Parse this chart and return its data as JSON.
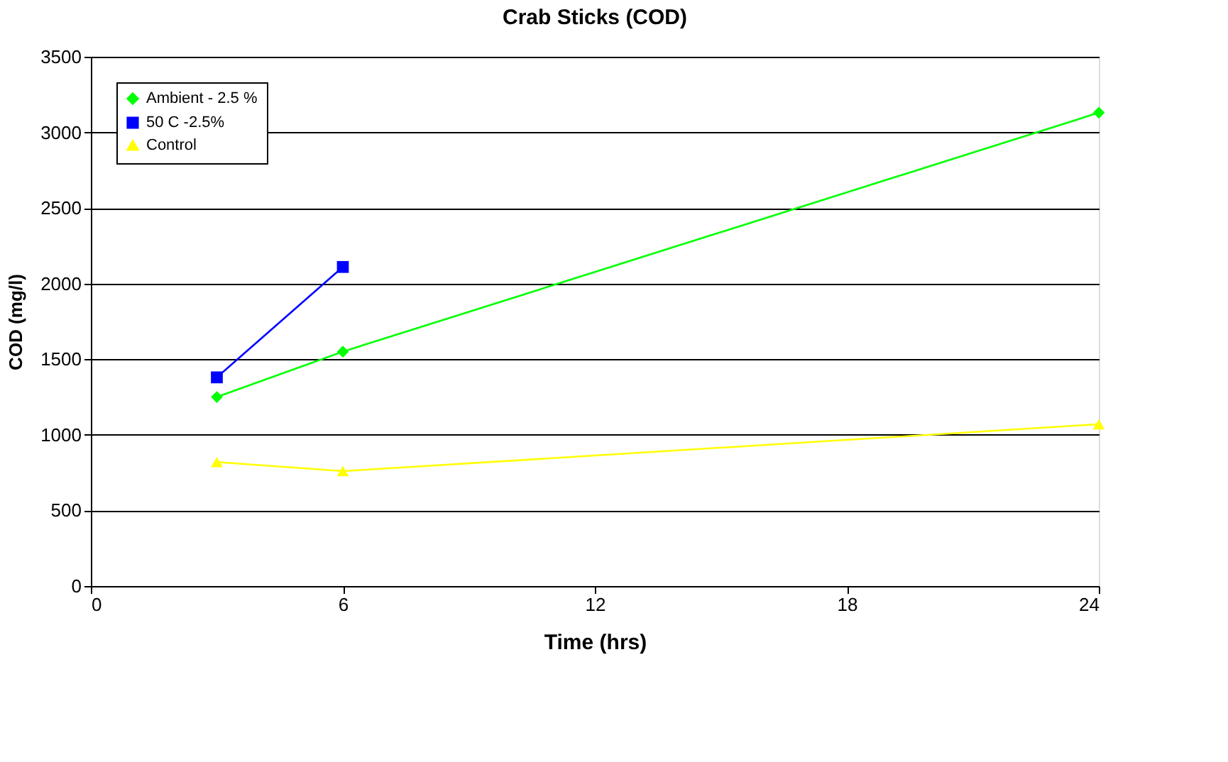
{
  "chart_data": {
    "type": "line",
    "title": "Crab Sticks (COD)",
    "xlabel": "Time (hrs)",
    "ylabel": "COD (mg/l)",
    "xlim": [
      0,
      24
    ],
    "xticks": [
      0,
      6,
      12,
      18,
      24
    ],
    "ylim": [
      0,
      3500
    ],
    "yticks": [
      0,
      500,
      1000,
      1500,
      2000,
      2500,
      3000,
      3500
    ],
    "grid": "y",
    "legend": "top left",
    "line_style": "solid",
    "series": [
      {
        "name": "Ambient - 2.5 %",
        "color": "#00ff00",
        "marker": "diamond",
        "x": [
          3,
          6,
          24
        ],
        "values": [
          1250,
          1550,
          3130
        ]
      },
      {
        "name": "50 C  -2.5%",
        "color": "#0000ff",
        "marker": "square",
        "x": [
          3,
          6
        ],
        "values": [
          1380,
          2110
        ]
      },
      {
        "name": "Control",
        "color": "#ffff00",
        "marker": "triangle",
        "x": [
          3,
          6,
          24
        ],
        "values": [
          820,
          760,
          1070
        ]
      }
    ]
  }
}
